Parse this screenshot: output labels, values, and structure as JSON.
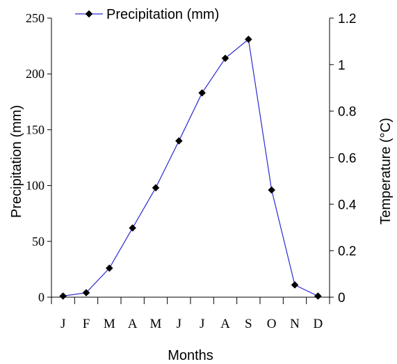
{
  "chart_data": {
    "type": "line",
    "xlabel": "Months",
    "ylabel": "Precipitation (mm)",
    "y2label": "Temperature (°C)",
    "categories": [
      "J",
      "F",
      "M",
      "A",
      "M",
      "J",
      "J",
      "A",
      "S",
      "O",
      "N",
      "D"
    ],
    "series": [
      {
        "name": "Precipitation (mm)",
        "color": "#2a2ad0",
        "marker": "diamond",
        "values": [
          1,
          4,
          26,
          62,
          98,
          140,
          183,
          214,
          231,
          96,
          11,
          1
        ]
      }
    ],
    "ylim": [
      0,
      250
    ],
    "yticks": [
      0,
      50,
      100,
      150,
      200,
      250
    ],
    "y2lim": [
      0,
      1.2
    ],
    "y2ticks": [
      "0",
      "0.2",
      "0.4",
      "0.6",
      "0.8",
      "1",
      "1.2"
    ],
    "legend": "top-center",
    "grid": false
  }
}
